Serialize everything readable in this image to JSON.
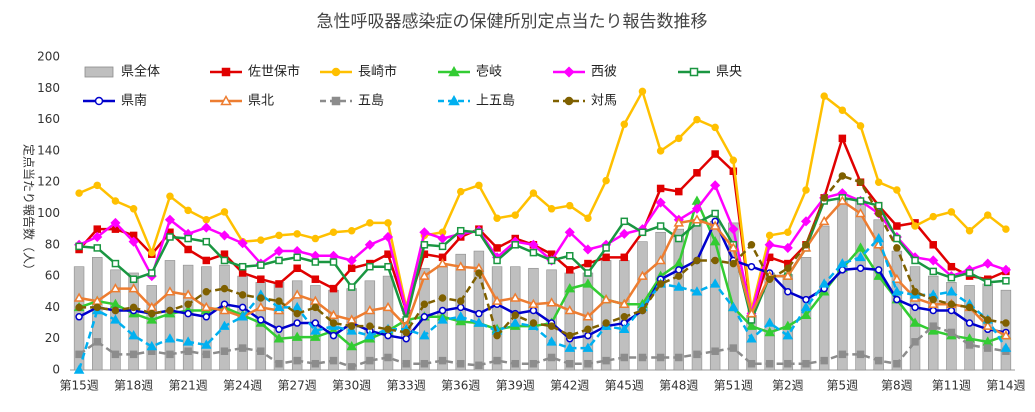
{
  "chart_data": {
    "type": "combo",
    "title": "急性呼吸器感染症の保健所別定点当たり報告数推移",
    "y_label": "定点当たり報告数（人）",
    "ylim": [
      0,
      200
    ],
    "yticks": [
      0,
      20,
      40,
      60,
      80,
      100,
      120,
      140,
      160,
      180,
      200
    ],
    "grid": false,
    "categories": [
      "第15週",
      null,
      null,
      "第18週",
      null,
      null,
      "第21週",
      null,
      null,
      "第24週",
      null,
      null,
      "第27週",
      null,
      null,
      "第30週",
      null,
      null,
      "第33週",
      null,
      null,
      "第36週",
      null,
      null,
      "第39週",
      null,
      null,
      "第42週",
      null,
      null,
      "第45週",
      null,
      null,
      "第48週",
      null,
      null,
      "第51週",
      null,
      null,
      "第2週",
      null,
      null,
      "第5週",
      null,
      null,
      "第8週",
      null,
      null,
      "第11週",
      null,
      null,
      "第14週"
    ],
    "series": [
      {
        "name": "県全体",
        "type": "bar",
        "color": "#bfbfbf",
        "values": [
          66,
          72,
          64,
          62,
          54,
          70,
          67,
          66,
          67,
          60,
          56,
          56,
          57,
          54,
          51,
          52,
          57,
          60,
          33,
          65,
          67,
          74,
          76,
          66,
          66,
          65,
          64,
          62,
          62,
          70,
          70,
          82,
          88,
          90,
          95,
          95,
          94,
          35,
          62,
          61,
          72,
          92,
          110,
          108,
          96,
          76,
          66,
          60,
          56,
          54,
          55,
          51
        ]
      },
      {
        "name": "佐世保市",
        "type": "line",
        "color": "#e00000",
        "marker": "square",
        "filled": true,
        "dashed": false,
        "values": [
          77,
          90,
          90,
          86,
          74,
          88,
          77,
          70,
          74,
          62,
          58,
          55,
          65,
          58,
          52,
          65,
          68,
          74,
          38,
          74,
          72,
          85,
          90,
          78,
          84,
          80,
          74,
          64,
          68,
          72,
          72,
          88,
          116,
          114,
          126,
          138,
          127,
          36,
          72,
          68,
          80,
          110,
          148,
          120,
          105,
          92,
          94,
          80,
          66,
          60,
          58,
          63
        ]
      },
      {
        "name": "長崎市",
        "type": "line",
        "color": "#ffc000",
        "marker": "circle",
        "filled": true,
        "dashed": false,
        "values": [
          113,
          118,
          108,
          103,
          75,
          111,
          102,
          96,
          101,
          82,
          83,
          86,
          87,
          84,
          88,
          89,
          94,
          94,
          40,
          86,
          88,
          114,
          118,
          97,
          99,
          113,
          103,
          105,
          97,
          121,
          157,
          178,
          140,
          148,
          160,
          155,
          134,
          38,
          86,
          88,
          115,
          175,
          166,
          156,
          120,
          115,
          92,
          98,
          101,
          89,
          99,
          90
        ]
      },
      {
        "name": "壱岐",
        "type": "line",
        "color": "#33cc33",
        "marker": "triangle",
        "filled": true,
        "dashed": false,
        "values": [
          40,
          44,
          42,
          36,
          32,
          36,
          38,
          38,
          40,
          35,
          30,
          20,
          21,
          21,
          25,
          15,
          20,
          25,
          32,
          34,
          34,
          31,
          30,
          26,
          28,
          28,
          30,
          52,
          55,
          45,
          42,
          42,
          60,
          68,
          108,
          82,
          40,
          28,
          24,
          28,
          35,
          50,
          65,
          78,
          60,
          45,
          30,
          25,
          22,
          20,
          18,
          22
        ]
      },
      {
        "name": "西彼",
        "type": "line",
        "color": "#ff00ff",
        "marker": "diamond",
        "filled": true,
        "dashed": false,
        "values": [
          80,
          85,
          94,
          82,
          60,
          96,
          87,
          91,
          86,
          81,
          68,
          76,
          76,
          73,
          73,
          70,
          80,
          85,
          38,
          88,
          84,
          87,
          89,
          72,
          82,
          80,
          70,
          88,
          77,
          80,
          87,
          90,
          107,
          96,
          103,
          118,
          90,
          36,
          80,
          78,
          95,
          110,
          113,
          108,
          100,
          85,
          72,
          70,
          60,
          64,
          68,
          64
        ]
      },
      {
        "name": "県央",
        "type": "line",
        "color": "#1a9641",
        "marker": "square",
        "filled": false,
        "dashed": false,
        "values": [
          79,
          78,
          68,
          58,
          62,
          85,
          84,
          82,
          70,
          66,
          67,
          70,
          72,
          69,
          69,
          53,
          66,
          66,
          32,
          80,
          79,
          89,
          88,
          70,
          80,
          75,
          70,
          73,
          62,
          78,
          95,
          88,
          92,
          84,
          94,
          100,
          80,
          32,
          60,
          60,
          78,
          108,
          110,
          108,
          105,
          84,
          70,
          63,
          59,
          62,
          56,
          57
        ]
      },
      {
        "name": "県南",
        "type": "line",
        "color": "#0000cc",
        "marker": "circle",
        "filled": false,
        "dashed": false,
        "values": [
          34,
          40,
          38,
          38,
          36,
          38,
          36,
          34,
          42,
          40,
          32,
          26,
          30,
          30,
          22,
          30,
          25,
          22,
          20,
          34,
          38,
          40,
          36,
          42,
          36,
          38,
          30,
          20,
          22,
          28,
          30,
          38,
          58,
          64,
          70,
          95,
          70,
          66,
          62,
          50,
          45,
          52,
          64,
          65,
          64,
          45,
          40,
          38,
          38,
          30,
          26,
          24
        ]
      },
      {
        "name": "県北",
        "type": "line",
        "color": "#ed7d31",
        "marker": "triangle",
        "filled": false,
        "dashed": false,
        "values": [
          46,
          44,
          52,
          52,
          40,
          50,
          48,
          40,
          38,
          34,
          40,
          38,
          48,
          44,
          35,
          32,
          38,
          40,
          28,
          60,
          68,
          66,
          65,
          44,
          46,
          42,
          43,
          38,
          34,
          45,
          42,
          60,
          70,
          94,
          96,
          92,
          78,
          36,
          60,
          60,
          78,
          95,
          108,
          100,
          80,
          58,
          46,
          42,
          42,
          40,
          28,
          22
        ]
      },
      {
        "name": "五島",
        "type": "line",
        "color": "#8c8c8c",
        "marker": "square",
        "filled": true,
        "dashed": true,
        "values": [
          10,
          18,
          10,
          10,
          12,
          10,
          12,
          10,
          12,
          14,
          12,
          4,
          6,
          4,
          6,
          2,
          6,
          8,
          4,
          4,
          6,
          4,
          3,
          6,
          4,
          4,
          8,
          4,
          4,
          6,
          8,
          8,
          8,
          8,
          10,
          12,
          14,
          4,
          4,
          4,
          4,
          6,
          10,
          10,
          6,
          4,
          18,
          28,
          24,
          16,
          14,
          12
        ]
      },
      {
        "name": "上五島",
        "type": "line",
        "color": "#00b0f0",
        "marker": "triangle",
        "filled": true,
        "dashed": true,
        "values": [
          0,
          38,
          32,
          22,
          15,
          20,
          18,
          16,
          28,
          34,
          48,
          40,
          40,
          25,
          28,
          25,
          22,
          26,
          26,
          22,
          32,
          34,
          30,
          25,
          30,
          28,
          18,
          14,
          14,
          28,
          26,
          40,
          55,
          53,
          50,
          55,
          40,
          20,
          30,
          22,
          40,
          55,
          68,
          72,
          84,
          50,
          48,
          48,
          50,
          42,
          32,
          14
        ]
      },
      {
        "name": "対馬",
        "type": "line",
        "color": "#7f6000",
        "marker": "circle",
        "filled": true,
        "dashed": true,
        "values": [
          40,
          40,
          38,
          40,
          36,
          38,
          42,
          50,
          52,
          48,
          46,
          44,
          36,
          40,
          30,
          28,
          28,
          26,
          24,
          42,
          46,
          44,
          62,
          22,
          35,
          30,
          28,
          22,
          26,
          30,
          34,
          38,
          55,
          60,
          70,
          70,
          68,
          80,
          58,
          65,
          80,
          110,
          124,
          120,
          100,
          78,
          50,
          45,
          42,
          40,
          32,
          30
        ]
      }
    ]
  }
}
